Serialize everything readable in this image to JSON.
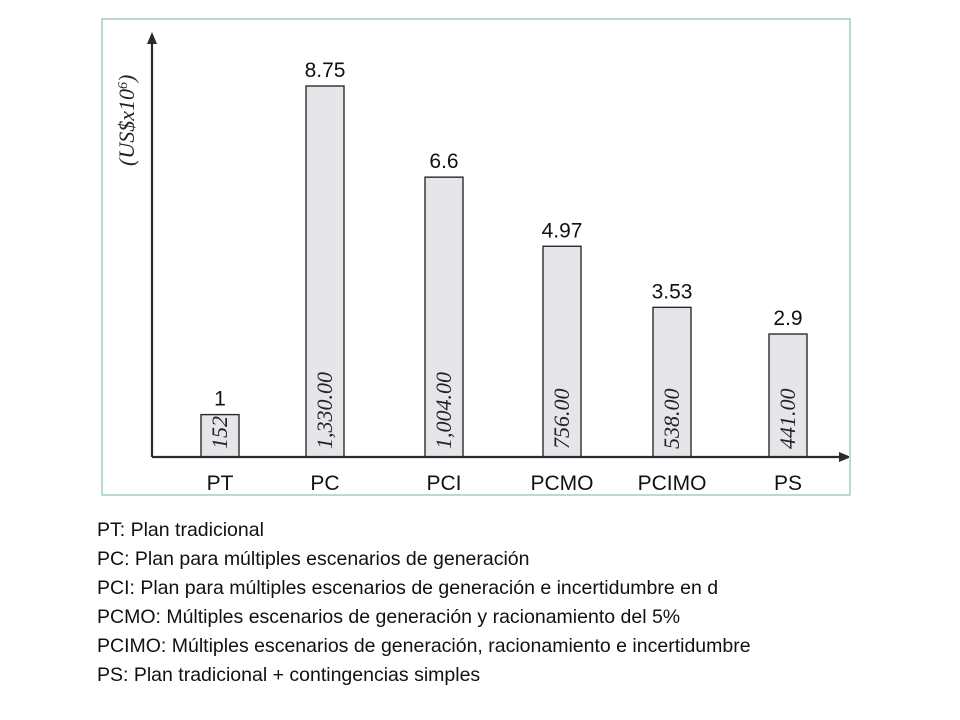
{
  "chart_data": {
    "type": "bar",
    "categories": [
      "PT",
      "PC",
      "PCI",
      "PCMO",
      "PCIMO",
      "PS"
    ],
    "values": [
      1,
      8.75,
      6.6,
      4.97,
      3.53,
      2.9
    ],
    "value_labels": [
      "1",
      "8.75",
      "6.6",
      "4.97",
      "3.53",
      "2.9"
    ],
    "inner_labels": [
      "152",
      "1,330.00",
      "1,004.00",
      "756.00",
      "538.00",
      "441.00"
    ],
    "ylabel": "(US$x10",
    "ylabel_sup": "6",
    "ylabel_close": ")",
    "ylim": [
      0,
      10
    ],
    "grid": false,
    "colors": {
      "bar_fill": "#e6e6ea",
      "bar_stroke": "#2b2b2b",
      "frame": "#b9dcc6"
    }
  },
  "legend": [
    "PT: Plan tradicional",
    "PC: Plan para múltiples escenarios de generación",
    "PCI: Plan para múltiples escenarios de generación e incertidumbre en d",
    "PCMO: Múltiples escenarios de generación y racionamiento del 5%",
    "PCIMO: Múltiples escenarios de generación, racionamiento e incertidumbre",
    "PS: Plan tradicional + contingencias simples"
  ]
}
